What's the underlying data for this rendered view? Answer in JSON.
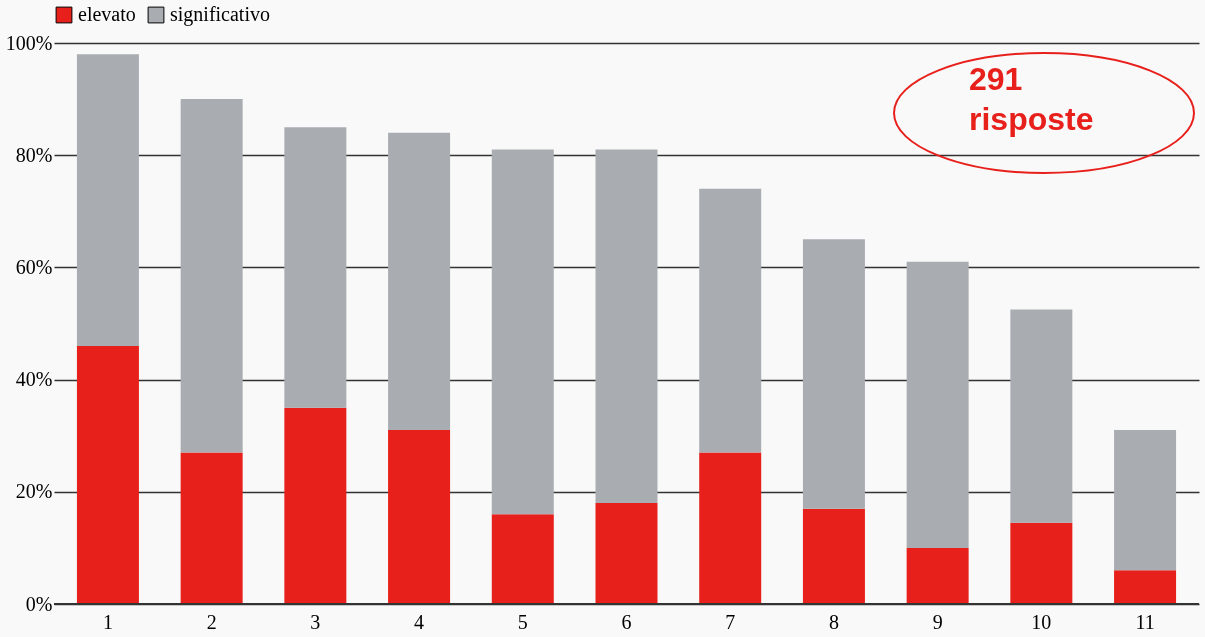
{
  "chart_data": {
    "type": "bar",
    "stacked": true,
    "categories": [
      "1",
      "2",
      "3",
      "4",
      "5",
      "6",
      "7",
      "8",
      "9",
      "10",
      "11"
    ],
    "series": [
      {
        "name": "elevato",
        "color": "#e8201c",
        "values": [
          46,
          27,
          35,
          31,
          16,
          18,
          27,
          17,
          10,
          14.5,
          6
        ]
      },
      {
        "name": "significativo",
        "color": "#a9adb2",
        "values": [
          52,
          63,
          50,
          53,
          65,
          63,
          47,
          48,
          51,
          38,
          25
        ]
      }
    ],
    "ylim": [
      0,
      100
    ],
    "yticks": [
      {
        "value": 0,
        "label": "0%"
      },
      {
        "value": 20,
        "label": "20%"
      },
      {
        "value": 40,
        "label": "40%"
      },
      {
        "value": 60,
        "label": "60%"
      },
      {
        "value": 80,
        "label": "80%"
      },
      {
        "value": 100,
        "label": "100%"
      }
    ],
    "grid": "y",
    "legend": "top",
    "annotations": [
      "291 risposte"
    ]
  }
}
